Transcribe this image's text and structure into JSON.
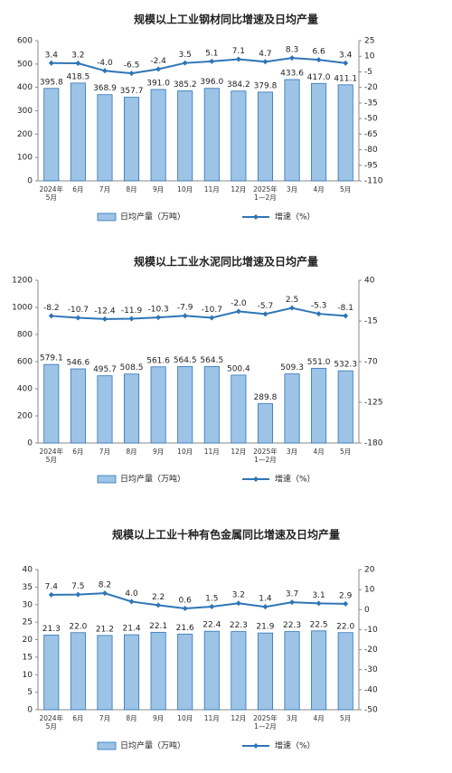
{
  "chart_data": [
    {
      "type": "bar-line",
      "title": "规模以上工业钢材同比增速及日均产量",
      "categories": [
        "2024年\n5月",
        "6月",
        "7月",
        "8月",
        "9月",
        "10月",
        "11月",
        "12月",
        "2025年\n1—2月",
        "3月",
        "4月",
        "5月"
      ],
      "ylim": [
        0,
        600
      ],
      "yticks": [
        0,
        100,
        200,
        300,
        400,
        500,
        600
      ],
      "y2lim": [
        -110,
        25
      ],
      "y2ticks": [
        25,
        10,
        -5,
        -20,
        -35,
        -50,
        -65,
        -80,
        -95,
        -110
      ],
      "series": [
        {
          "name": "日均产量（万吨）",
          "color": "#9dc3e6",
          "values": [
            395.8,
            418.5,
            368.9,
            357.7,
            391.0,
            385.2,
            396.0,
            384.2,
            379.8,
            433.6,
            417.0,
            411.1
          ],
          "value_labels": [
            "395.8",
            "418.5",
            "368.9",
            "357.7",
            "391.0",
            "385.2",
            "396.0",
            "384.2",
            "379.8",
            "433.6",
            "417.0",
            "411.1"
          ]
        },
        {
          "name": "增速（%）",
          "color": "#2e75b6",
          "axis": "y2",
          "values": [
            3.4,
            3.2,
            -4.0,
            -6.5,
            -2.4,
            3.5,
            5.1,
            7.1,
            4.7,
            8.3,
            6.6,
            3.4
          ],
          "value_labels": [
            "3.4",
            "3.2",
            "-4.0",
            "-6.5",
            "-2.4",
            "3.5",
            "5.1",
            "7.1",
            "4.7",
            "8.3",
            "6.6",
            "3.4"
          ]
        }
      ]
    },
    {
      "type": "bar-line",
      "title": "规模以上工业水泥同比增速及日均产量",
      "categories": [
        "2024年\n5月",
        "6月",
        "7月",
        "8月",
        "9月",
        "10月",
        "11月",
        "12月",
        "2025年\n1—2月",
        "3月",
        "4月",
        "5月"
      ],
      "ylim": [
        0,
        1200
      ],
      "yticks": [
        0,
        200,
        400,
        600,
        800,
        1000,
        1200
      ],
      "y2lim": [
        -180,
        40
      ],
      "y2ticks": [
        40,
        -15,
        -70,
        -125,
        -180
      ],
      "series": [
        {
          "name": "日均产量（万吨）",
          "color": "#9dc3e6",
          "values": [
            579.1,
            546.6,
            495.7,
            508.5,
            561.6,
            564.5,
            564.5,
            500.4,
            289.8,
            509.3,
            551.0,
            532.3
          ],
          "value_labels": [
            "579.1",
            "546.6",
            "495.7",
            "508.5",
            "561.6",
            "564.5",
            "564.5",
            "500.4",
            "289.8",
            "509.3",
            "551.0",
            "532.3"
          ]
        },
        {
          "name": "增速（%）",
          "color": "#2e75b6",
          "axis": "y2",
          "values": [
            -8.2,
            -10.7,
            -12.4,
            -11.9,
            -10.3,
            -7.9,
            -10.7,
            -2.0,
            -5.7,
            2.5,
            -5.3,
            -8.1
          ],
          "value_labels": [
            "-8.2",
            "-10.7",
            "-12.4",
            "-11.9",
            "-10.3",
            "-7.9",
            "-10.7",
            "-2.0",
            "-5.7",
            "2.5",
            "-5.3",
            "-8.1"
          ]
        }
      ]
    },
    {
      "type": "bar-line",
      "title": "规模以上工业十种有色金属同比增速及日均产量",
      "categories": [
        "2024年\n5月",
        "6月",
        "7月",
        "8月",
        "9月",
        "10月",
        "11月",
        "12月",
        "2025年\n1—2月",
        "3月",
        "4月",
        "5月"
      ],
      "ylim": [
        0,
        40
      ],
      "yticks": [
        0,
        5,
        10,
        15,
        20,
        25,
        30,
        35,
        40
      ],
      "y2lim": [
        -50,
        20
      ],
      "y2ticks": [
        20,
        10,
        0,
        -10,
        -20,
        -30,
        -40,
        -50
      ],
      "series": [
        {
          "name": "日均产量（万吨）",
          "color": "#9dc3e6",
          "values": [
            21.3,
            22.0,
            21.2,
            21.4,
            22.1,
            21.6,
            22.4,
            22.3,
            21.9,
            22.3,
            22.5,
            22.0
          ],
          "value_labels": [
            "21.3",
            "22.0",
            "21.2",
            "21.4",
            "22.1",
            "21.6",
            "22.4",
            "22.3",
            "21.9",
            "22.3",
            "22.5",
            "22.0"
          ]
        },
        {
          "name": "增速（%）",
          "color": "#2e75b6",
          "axis": "y2",
          "values": [
            7.4,
            7.5,
            8.2,
            4.0,
            2.2,
            0.6,
            1.5,
            3.2,
            1.4,
            3.7,
            3.1,
            2.9
          ],
          "value_labels": [
            "7.4",
            "7.5",
            "8.2",
            "4.0",
            "2.2",
            "0.6",
            "1.5",
            "3.2",
            "1.4",
            "3.7",
            "3.1",
            "2.9"
          ]
        }
      ]
    }
  ]
}
